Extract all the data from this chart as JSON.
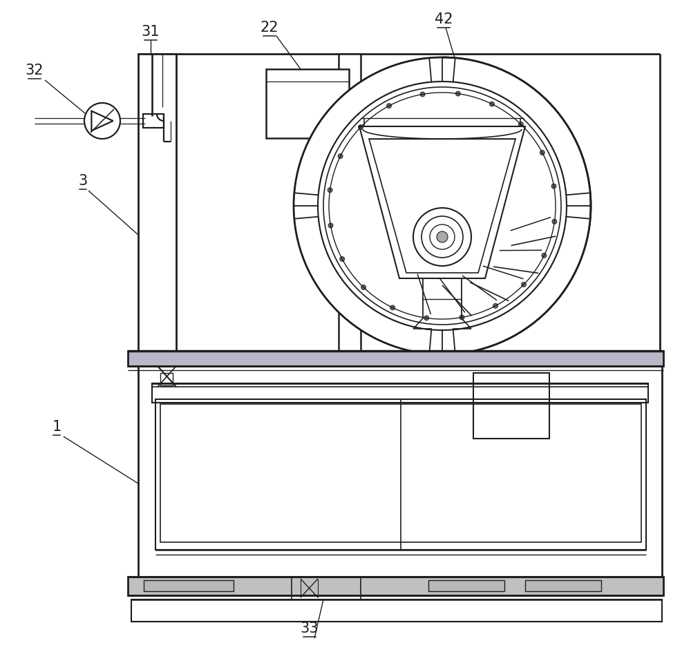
{
  "bg": "#ffffff",
  "C": "#1e1e1e",
  "lw": 1.6,
  "tlw": 0.9,
  "fs": 15,
  "gray_fill": "#d0d0d0",
  "white": "#ffffff",
  "fig_w": 10.0,
  "fig_h": 9.44,
  "dpi": 100
}
